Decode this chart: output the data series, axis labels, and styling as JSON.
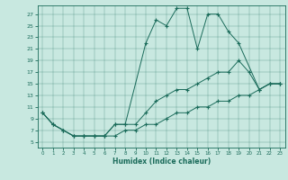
{
  "xlabel": "Humidex (Indice chaleur)",
  "bg_color": "#c8e8e0",
  "line_color": "#1a6b5a",
  "xlim": [
    -0.5,
    23.5
  ],
  "ylim": [
    4.0,
    28.5
  ],
  "xtick_vals": [
    0,
    1,
    2,
    3,
    4,
    5,
    6,
    7,
    8,
    9,
    10,
    11,
    12,
    13,
    14,
    15,
    16,
    17,
    18,
    19,
    20,
    21,
    22,
    23
  ],
  "ytick_vals": [
    5,
    7,
    9,
    11,
    13,
    15,
    17,
    19,
    21,
    23,
    25,
    27
  ],
  "line1_x": [
    0,
    1,
    2,
    3,
    4,
    5,
    6,
    7,
    8,
    9,
    10,
    11,
    12,
    13,
    14,
    15,
    16,
    17,
    18,
    19,
    20,
    21,
    22,
    23
  ],
  "line1_y": [
    10,
    8,
    7,
    6,
    6,
    6,
    6,
    6,
    7,
    7,
    8,
    8,
    9,
    10,
    10,
    11,
    11,
    12,
    12,
    13,
    13,
    14,
    15,
    15
  ],
  "line2_x": [
    0,
    1,
    2,
    3,
    4,
    5,
    6,
    7,
    8,
    9,
    10,
    11,
    12,
    13,
    14,
    15,
    16,
    17,
    18,
    19,
    20,
    21,
    22,
    23
  ],
  "line2_y": [
    10,
    8,
    7,
    6,
    6,
    6,
    6,
    8,
    8,
    8,
    10,
    12,
    13,
    14,
    14,
    15,
    16,
    17,
    17,
    19,
    17,
    14,
    15,
    15
  ],
  "line3_x": [
    0,
    1,
    2,
    3,
    4,
    5,
    6,
    7,
    8,
    10,
    11,
    12,
    13,
    14,
    15,
    16,
    17,
    18,
    19,
    21,
    22,
    23
  ],
  "line3_y": [
    10,
    8,
    7,
    6,
    6,
    6,
    6,
    8,
    8,
    22,
    26,
    25,
    28,
    28,
    21,
    27,
    27,
    24,
    22,
    14,
    15,
    15
  ]
}
